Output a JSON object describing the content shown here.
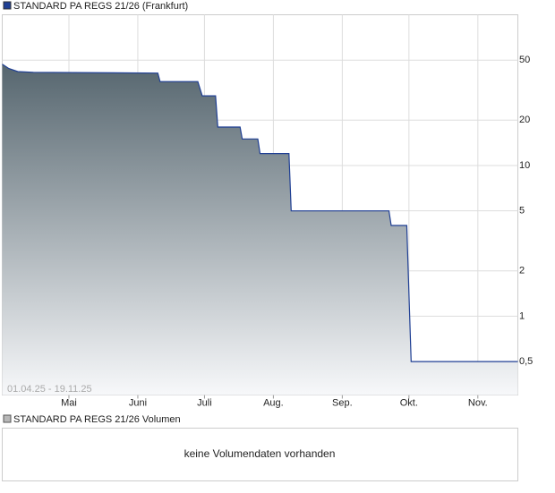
{
  "chart_data": [
    {
      "type": "area",
      "series": [
        {
          "name": "STANDARD PA REGS 21/26 (Frankfurt)",
          "color": "#1f3f94",
          "values": [
            47,
            44,
            42,
            41.5,
            41,
            36,
            36,
            29,
            29,
            18,
            18,
            15,
            15,
            12,
            12,
            5,
            5,
            4,
            4,
            0.5,
            0.5
          ]
        }
      ],
      "x": [
        "2025-04-01",
        "2025-04-04",
        "2025-04-08",
        "2025-04-15",
        "2025-06-10",
        "2025-06-11",
        "2025-06-28",
        "2025-06-30",
        "2025-07-06",
        "2025-07-07",
        "2025-07-17",
        "2025-07-18",
        "2025-07-25",
        "2025-07-26",
        "2025-08-08",
        "2025-08-09",
        "2025-09-22",
        "2025-09-23",
        "2025-09-30",
        "2025-10-02",
        "2025-11-19"
      ],
      "range_label": "01.04.25 - 19.11.25",
      "xlim": [
        "2025-04-01",
        "2025-11-19"
      ],
      "xticks": [
        {
          "value": "2025-05-01",
          "label": "Mai"
        },
        {
          "value": "2025-06-01",
          "label": "Juni"
        },
        {
          "value": "2025-07-01",
          "label": "Juli"
        },
        {
          "value": "2025-08-01",
          "label": "Aug."
        },
        {
          "value": "2025-09-01",
          "label": "Sep."
        },
        {
          "value": "2025-10-01",
          "label": "Okt."
        },
        {
          "value": "2025-11-01",
          "label": "Nov."
        }
      ],
      "ylim": [
        0.3,
        100
      ],
      "yticks": [
        {
          "value": 0.5,
          "label": "0,5"
        },
        1,
        2,
        5,
        10,
        20,
        50
      ],
      "log_scale": true,
      "grid": true
    },
    {
      "type": "volume",
      "series": [
        {
          "name": "STANDARD PA REGS 21/26 Volumen",
          "color": "#b8b8b8"
        }
      ],
      "message": "keine Volumendaten vorhanden"
    }
  ]
}
